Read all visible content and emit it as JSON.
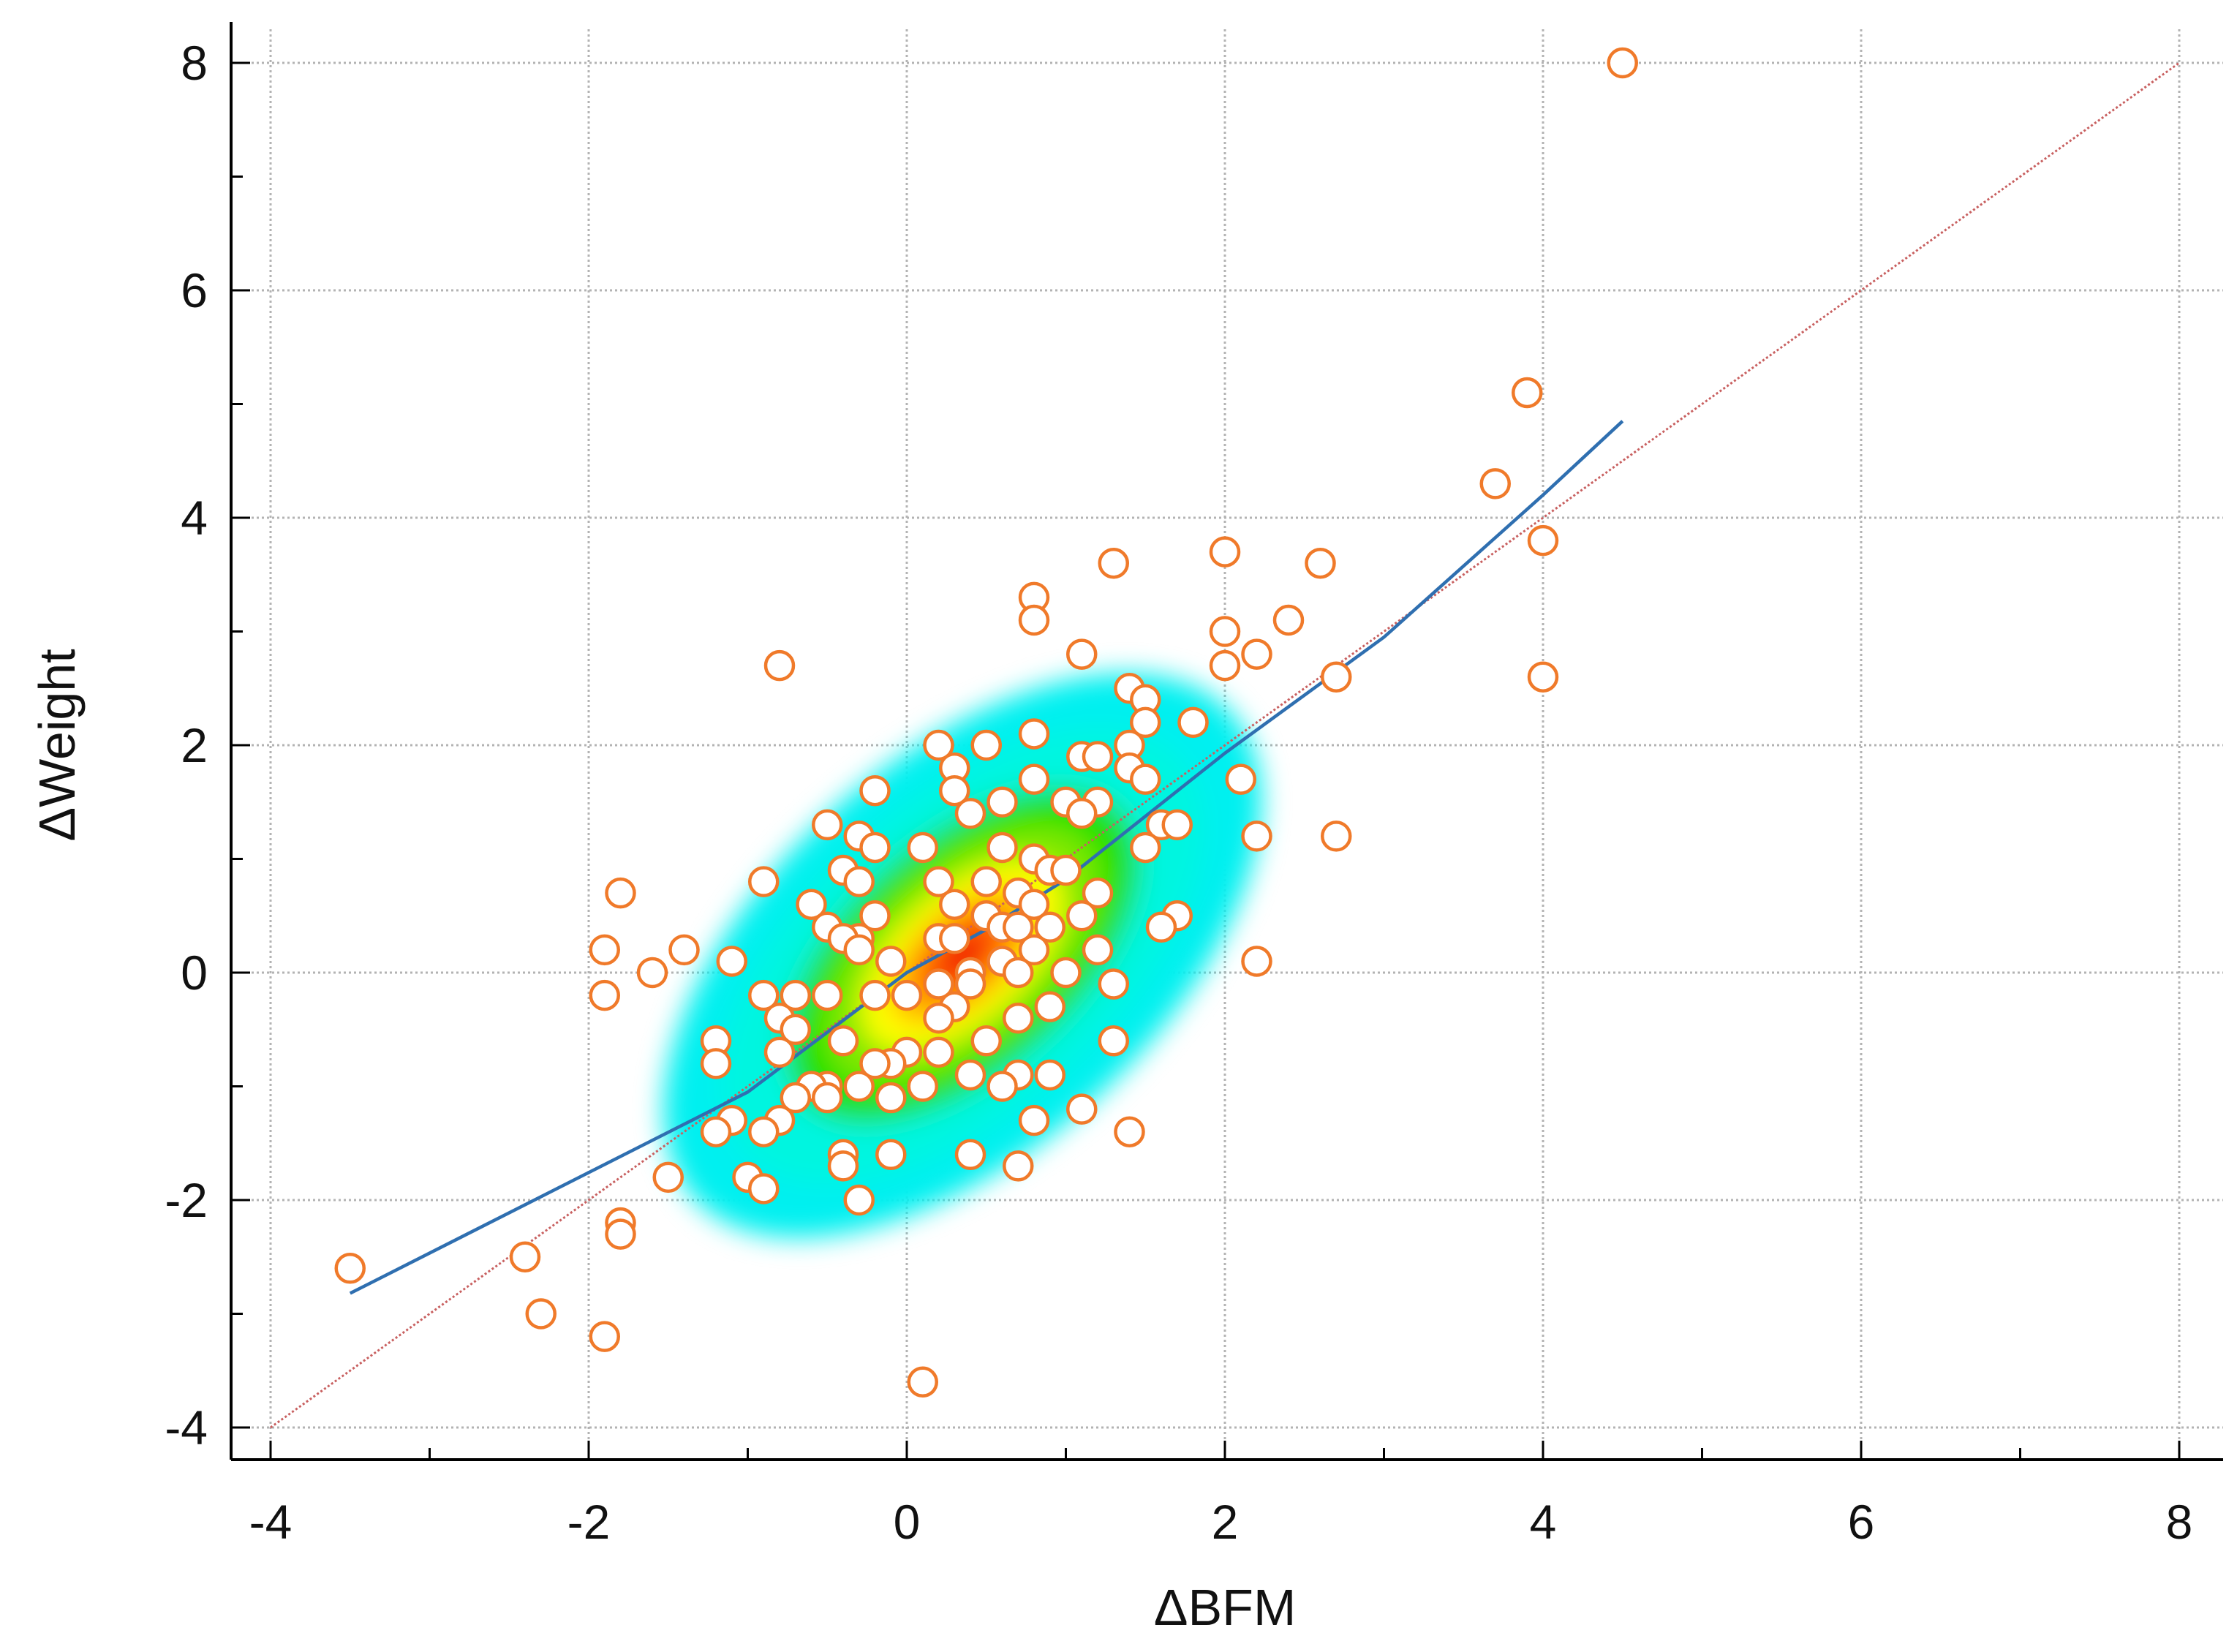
{
  "chart_data": {
    "type": "scatter",
    "xlabel": "ΔBFM",
    "ylabel": "ΔWeight",
    "xlim": [
      -4,
      8
    ],
    "ylim": [
      -4,
      8
    ],
    "xticks": [
      "-4",
      "-2",
      "0",
      "2",
      "4",
      "6",
      "8"
    ],
    "yticks": [
      "-4",
      "-2",
      "0",
      "2",
      "4",
      "6",
      "8"
    ],
    "grid": true,
    "density_overlay": true,
    "point_color": "#f07a2a",
    "fit_line_color": "#2f6fb0",
    "identity_line_color": "#c86060",
    "points": [
      [
        4.5,
        8.0
      ],
      [
        3.9,
        5.1
      ],
      [
        3.7,
        4.3
      ],
      [
        4.0,
        3.8
      ],
      [
        4.0,
        2.6
      ],
      [
        2.0,
        3.7
      ],
      [
        2.6,
        3.6
      ],
      [
        1.3,
        3.6
      ],
      [
        0.8,
        3.3
      ],
      [
        0.8,
        3.1
      ],
      [
        2.4,
        3.1
      ],
      [
        2.0,
        3.0
      ],
      [
        2.2,
        2.8
      ],
      [
        2.0,
        2.7
      ],
      [
        1.1,
        2.8
      ],
      [
        2.7,
        2.6
      ],
      [
        -0.8,
        2.7
      ],
      [
        1.4,
        2.5
      ],
      [
        1.5,
        2.4
      ],
      [
        1.5,
        2.2
      ],
      [
        1.8,
        2.2
      ],
      [
        0.8,
        2.1
      ],
      [
        0.2,
        2.0
      ],
      [
        0.5,
        2.0
      ],
      [
        1.4,
        2.0
      ],
      [
        1.1,
        1.9
      ],
      [
        1.2,
        1.9
      ],
      [
        0.3,
        1.8
      ],
      [
        1.4,
        1.8
      ],
      [
        1.5,
        1.7
      ],
      [
        0.8,
        1.7
      ],
      [
        2.1,
        1.7
      ],
      [
        0.3,
        1.6
      ],
      [
        -0.2,
        1.6
      ],
      [
        0.6,
        1.5
      ],
      [
        1.0,
        1.5
      ],
      [
        1.2,
        1.5
      ],
      [
        0.4,
        1.4
      ],
      [
        1.1,
        1.4
      ],
      [
        1.6,
        1.3
      ],
      [
        1.7,
        1.3
      ],
      [
        -0.5,
        1.3
      ],
      [
        -0.3,
        1.2
      ],
      [
        2.2,
        1.2
      ],
      [
        2.7,
        1.2
      ],
      [
        1.5,
        1.1
      ],
      [
        -0.2,
        1.1
      ],
      [
        0.1,
        1.1
      ],
      [
        0.6,
        1.1
      ],
      [
        0.8,
        1.0
      ],
      [
        0.9,
        0.9
      ],
      [
        1.0,
        0.9
      ],
      [
        -0.4,
        0.9
      ],
      [
        -0.3,
        0.8
      ],
      [
        -0.9,
        0.8
      ],
      [
        0.2,
        0.8
      ],
      [
        0.5,
        0.8
      ],
      [
        0.7,
        0.7
      ],
      [
        1.2,
        0.7
      ],
      [
        -1.8,
        0.7
      ],
      [
        0.8,
        0.6
      ],
      [
        0.3,
        0.6
      ],
      [
        -0.6,
        0.6
      ],
      [
        1.1,
        0.5
      ],
      [
        1.7,
        0.5
      ],
      [
        -0.2,
        0.5
      ],
      [
        0.5,
        0.5
      ],
      [
        0.9,
        0.4
      ],
      [
        -0.5,
        0.4
      ],
      [
        1.6,
        0.4
      ],
      [
        0.6,
        0.4
      ],
      [
        0.7,
        0.4
      ],
      [
        -0.3,
        0.3
      ],
      [
        0.2,
        0.3
      ],
      [
        0.3,
        0.3
      ],
      [
        -0.4,
        0.3
      ],
      [
        -0.3,
        0.2
      ],
      [
        0.8,
        0.2
      ],
      [
        1.2,
        0.2
      ],
      [
        -1.9,
        0.2
      ],
      [
        -1.4,
        0.2
      ],
      [
        0.6,
        0.1
      ],
      [
        -1.1,
        0.1
      ],
      [
        -0.1,
        0.1
      ],
      [
        2.2,
        0.1
      ],
      [
        0.4,
        0.0
      ],
      [
        0.7,
        0.0
      ],
      [
        1.0,
        0.0
      ],
      [
        -1.6,
        0.0
      ],
      [
        0.2,
        -0.1
      ],
      [
        0.4,
        -0.1
      ],
      [
        1.3,
        -0.1
      ],
      [
        0.0,
        -0.2
      ],
      [
        -0.2,
        -0.2
      ],
      [
        -0.5,
        -0.2
      ],
      [
        -0.7,
        -0.2
      ],
      [
        -0.9,
        -0.2
      ],
      [
        -1.9,
        -0.2
      ],
      [
        0.3,
        -0.3
      ],
      [
        0.9,
        -0.3
      ],
      [
        -0.8,
        -0.4
      ],
      [
        0.2,
        -0.4
      ],
      [
        0.7,
        -0.4
      ],
      [
        -0.7,
        -0.5
      ],
      [
        -0.4,
        -0.6
      ],
      [
        0.5,
        -0.6
      ],
      [
        1.3,
        -0.6
      ],
      [
        -1.2,
        -0.6
      ],
      [
        -0.8,
        -0.7
      ],
      [
        0.0,
        -0.7
      ],
      [
        0.2,
        -0.7
      ],
      [
        -0.1,
        -0.8
      ],
      [
        -0.2,
        -0.8
      ],
      [
        -1.2,
        -0.8
      ],
      [
        0.4,
        -0.9
      ],
      [
        0.7,
        -0.9
      ],
      [
        0.9,
        -0.9
      ],
      [
        -0.3,
        -1.0
      ],
      [
        -0.5,
        -1.0
      ],
      [
        -0.6,
        -1.0
      ],
      [
        -0.7,
        -1.1
      ],
      [
        0.1,
        -1.0
      ],
      [
        0.6,
        -1.0
      ],
      [
        -0.1,
        -1.1
      ],
      [
        -0.5,
        -1.1
      ],
      [
        1.1,
        -1.2
      ],
      [
        -1.1,
        -1.3
      ],
      [
        -0.8,
        -1.3
      ],
      [
        0.8,
        -1.3
      ],
      [
        -1.2,
        -1.4
      ],
      [
        -0.9,
        -1.4
      ],
      [
        1.4,
        -1.4
      ],
      [
        -0.4,
        -1.6
      ],
      [
        -0.1,
        -1.6
      ],
      [
        0.4,
        -1.6
      ],
      [
        -0.4,
        -1.7
      ],
      [
        0.7,
        -1.7
      ],
      [
        -1.5,
        -1.8
      ],
      [
        -1.0,
        -1.8
      ],
      [
        -0.9,
        -1.9
      ],
      [
        -0.3,
        -2.0
      ],
      [
        -1.8,
        -2.2
      ],
      [
        -1.8,
        -2.3
      ],
      [
        -2.4,
        -2.5
      ],
      [
        -3.5,
        -2.6
      ],
      [
        -2.3,
        -3.0
      ],
      [
        -1.9,
        -3.2
      ],
      [
        0.1,
        -3.6
      ]
    ],
    "fit_line": [
      [
        -3.5,
        -2.82
      ],
      [
        -1.0,
        -1.05
      ],
      [
        0.0,
        0.0
      ],
      [
        0.5,
        0.38
      ],
      [
        1.0,
        0.82
      ],
      [
        2.0,
        1.93
      ],
      [
        3.0,
        2.95
      ],
      [
        4.0,
        4.2
      ],
      [
        4.5,
        4.85
      ]
    ],
    "identity_line": [
      [
        -4,
        -4
      ],
      [
        8,
        8
      ]
    ]
  }
}
